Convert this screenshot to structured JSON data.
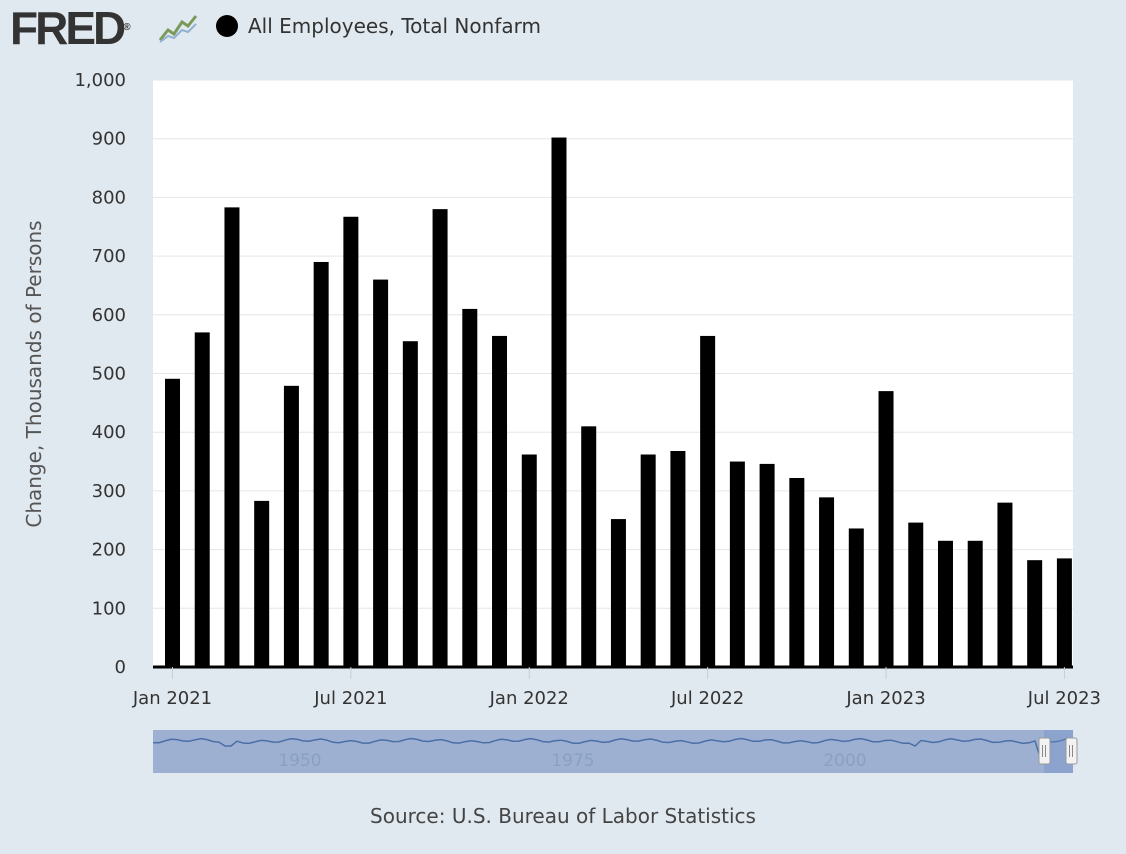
{
  "header": {
    "logo_text": "FRED",
    "logo_reg": "®",
    "legend_label": "All Employees, Total Nonfarm"
  },
  "footer": {
    "source": "Source: U.S. Bureau of Labor Statistics"
  },
  "colors": {
    "background": "#e1e9f0",
    "plot_background": "#ffffff",
    "bar": "#000000",
    "grid": "#e6e6e6",
    "navigator_fill": "#9eb0d2",
    "navigator_line": "#4a6fa5"
  },
  "chart_data": {
    "type": "bar",
    "title": "All Employees, Total Nonfarm",
    "xlabel": "",
    "ylabel": "Change, Thousands of Persons",
    "ylim": [
      0,
      1000
    ],
    "yticks": [
      "0",
      "100",
      "200",
      "300",
      "400",
      "500",
      "600",
      "700",
      "800",
      "900",
      "1,000"
    ],
    "xticks": [
      "Jan 2021",
      "Jul 2021",
      "Jan 2022",
      "Jul 2022",
      "Jan 2023",
      "Jul 2023"
    ],
    "grid": true,
    "legend_position": "top-left",
    "categories": [
      "2021-01",
      "2021-02",
      "2021-03",
      "2021-04",
      "2021-05",
      "2021-06",
      "2021-07",
      "2021-08",
      "2021-09",
      "2021-10",
      "2021-11",
      "2021-12",
      "2022-01",
      "2022-02",
      "2022-03",
      "2022-04",
      "2022-05",
      "2022-06",
      "2022-07",
      "2022-08",
      "2022-09",
      "2022-10",
      "2022-11",
      "2022-12",
      "2023-01",
      "2023-02",
      "2023-03",
      "2023-04",
      "2023-05",
      "2023-06",
      "2023-07"
    ],
    "series": [
      {
        "name": "All Employees, Total Nonfarm",
        "values": [
          491,
          570,
          783,
          283,
          479,
          690,
          767,
          660,
          555,
          780,
          610,
          564,
          362,
          902,
          410,
          252,
          362,
          368,
          564,
          350,
          346,
          322,
          289,
          236,
          470,
          246,
          215,
          215,
          280,
          182,
          185
        ]
      }
    ],
    "navigator": {
      "tick_labels": [
        "1950",
        "1975",
        "2000"
      ]
    }
  }
}
